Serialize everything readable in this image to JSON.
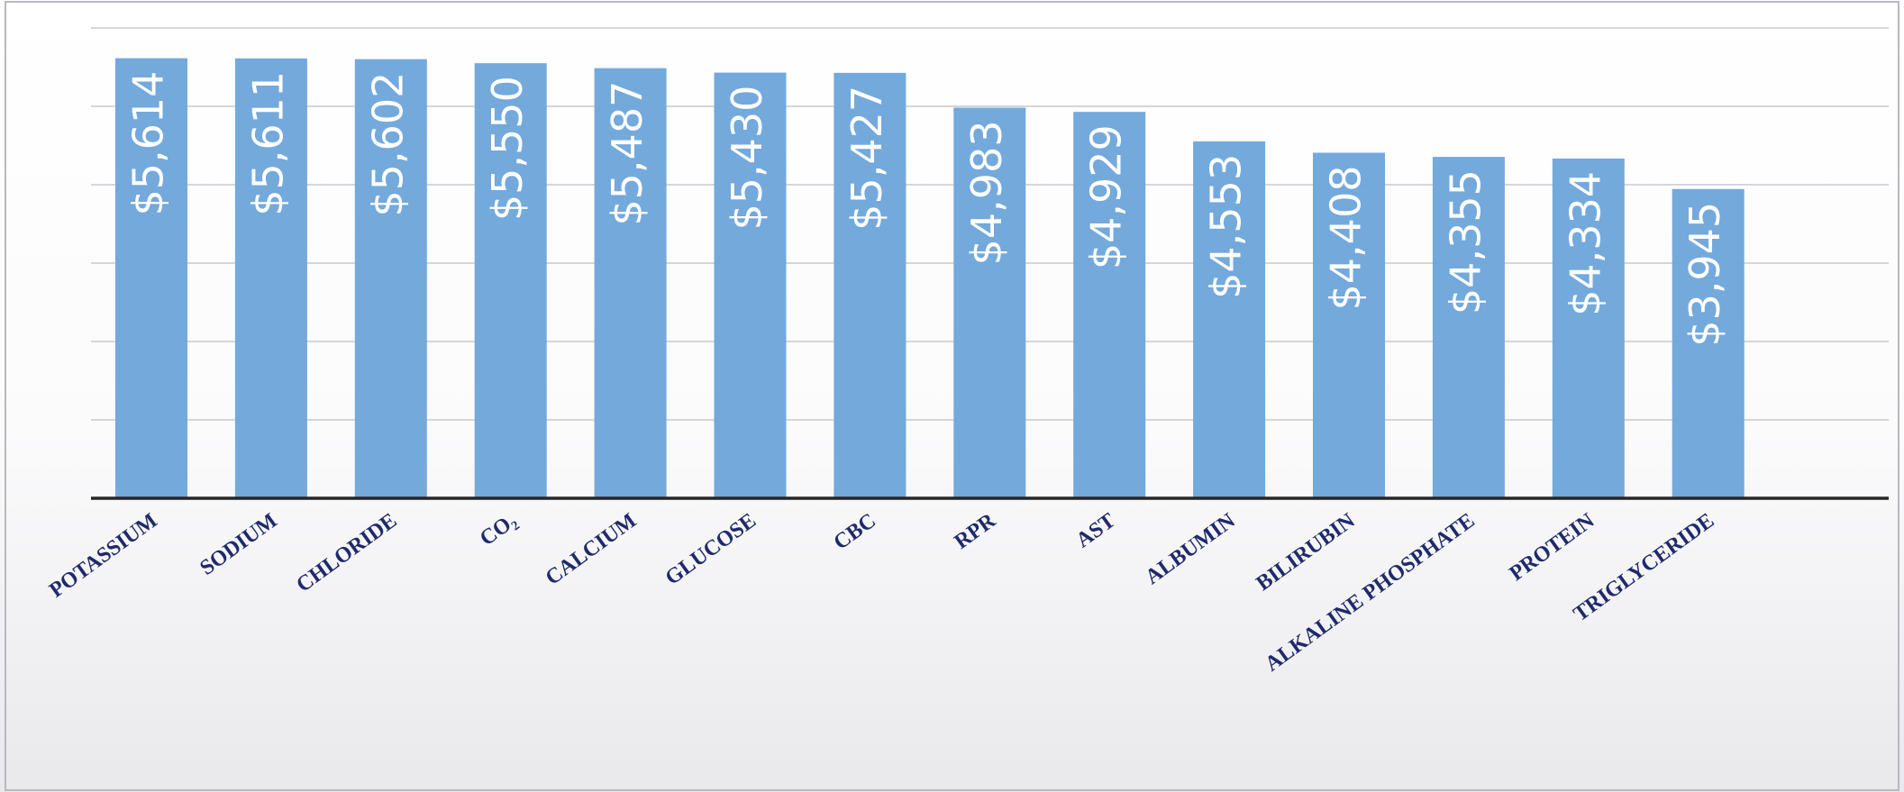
{
  "chart_data": {
    "type": "bar",
    "categories": [
      "POTASSIUM",
      "SODIUM",
      "CHLORIDE",
      "CO₂",
      "CALCIUM",
      "GLUCOSE",
      "CBC",
      "RPR",
      "AST",
      "ALBUMIN",
      "BILIRUBIN",
      "ALKALINE PHOSPHATE",
      "PROTEIN",
      "TRIGLYCERIDE"
    ],
    "values": [
      5614,
      5611,
      5602,
      5550,
      5487,
      5430,
      5427,
      4983,
      4929,
      4553,
      4408,
      4355,
      4334,
      3945
    ],
    "value_labels": [
      "$5,614",
      "$5,611",
      "$5,602",
      "$5,550",
      "$5,487",
      "$5,430",
      "$5,427",
      "$4,983",
      "$4,929",
      "$4,553",
      "$4,408",
      "$4,355",
      "$4,334",
      "$3,945"
    ],
    "color": "#71a7db",
    "ylim": [
      0,
      6000
    ],
    "yticks": [
      0,
      1000,
      2000,
      3000,
      4000,
      5000,
      6000
    ],
    "grid": true
  }
}
